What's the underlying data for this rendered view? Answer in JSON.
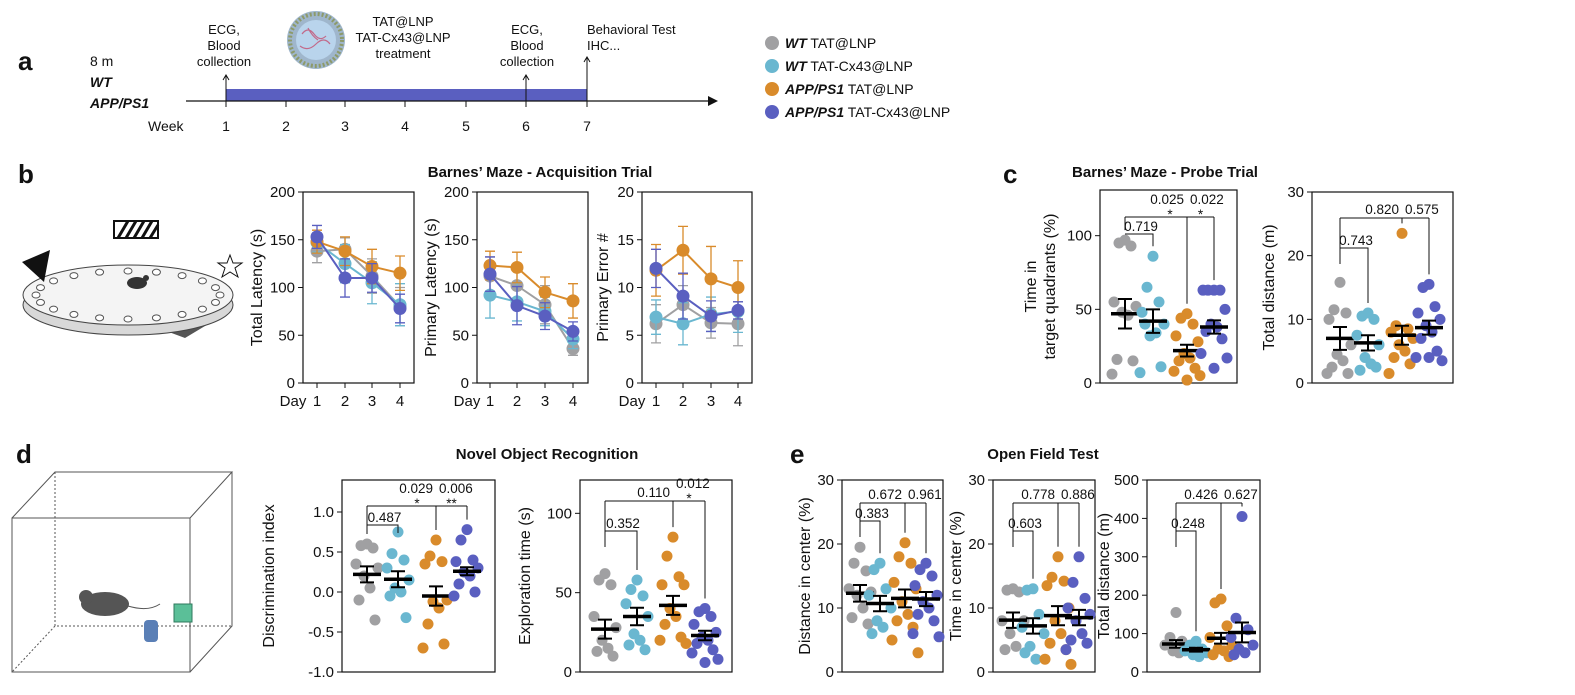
{
  "colors": {
    "wt_tat": "#a0a0a2",
    "wt_cx43": "#6ab7d0",
    "app_tat": "#d98b2b",
    "app_cx43": "#5a5fc0"
  },
  "panels": {
    "a": {
      "label": "a",
      "age": "8 m",
      "strain1": "WT",
      "strain2": "APP/PS1",
      "week_label": "Week",
      "weeks": [
        "1",
        "2",
        "3",
        "4",
        "5",
        "6",
        "7"
      ],
      "event1": [
        "ECG,",
        "Blood",
        "collection"
      ],
      "treatment": [
        "TAT@LNP",
        "TAT-Cx43@LNP",
        "treatment"
      ],
      "event2": [
        "ECG,",
        "Blood",
        "collection"
      ],
      "event3": [
        "Behavioral Test",
        "IHC..."
      ]
    },
    "b": {
      "label": "b",
      "title": "Barnes’ Maze - Acquisition Trial"
    },
    "c": {
      "label": "c",
      "title": "Barnes’ Maze - Probe Trial"
    },
    "d": {
      "label": "d",
      "title": "Novel Object Recognition"
    },
    "e": {
      "label": "e",
      "title": "Open Field Test"
    }
  },
  "legend": [
    {
      "genotype": "WT",
      "treatment": "TAT@LNP",
      "color": "#a0a0a2"
    },
    {
      "genotype": "WT",
      "treatment": "TAT-Cx43@LNP",
      "color": "#6ab7d0"
    },
    {
      "genotype": "APP/PS1",
      "treatment": "TAT@LNP",
      "color": "#d98b2b"
    },
    {
      "genotype": "APP/PS1",
      "treatment": "TAT-Cx43@LNP",
      "color": "#5a5fc0"
    }
  ],
  "chart_data": [
    {
      "id": "b1",
      "type": "line",
      "ylabel": "Total Latency (s)",
      "xlabel": "Day",
      "categories": [
        "1",
        "2",
        "3",
        "4"
      ],
      "ylim": [
        0,
        200
      ],
      "yticks": [
        0,
        50,
        100,
        150,
        200
      ],
      "series": [
        {
          "name": "WT TAT@LNP",
          "color": "#a0a0a2",
          "mean": [
            138,
            140,
            112,
            80
          ],
          "sem": [
            12,
            12,
            18,
            20
          ]
        },
        {
          "name": "WT TAT-Cx43@LNP",
          "color": "#6ab7d0",
          "mean": [
            147,
            125,
            105,
            82
          ],
          "sem": [
            10,
            20,
            22,
            22
          ]
        },
        {
          "name": "APP/PS1 TAT@LNP",
          "color": "#d98b2b",
          "mean": [
            148,
            138,
            122,
            115
          ],
          "sem": [
            12,
            15,
            18,
            18
          ]
        },
        {
          "name": "APP/PS1 TAT-Cx43@LNP",
          "color": "#5a5fc0",
          "mean": [
            153,
            110,
            110,
            78
          ],
          "sem": [
            12,
            20,
            15,
            15
          ]
        }
      ]
    },
    {
      "id": "b2",
      "type": "line",
      "ylabel": "Primary Latency (s)",
      "xlabel": "Day",
      "categories": [
        "1",
        "2",
        "3",
        "4"
      ],
      "ylim": [
        0,
        200
      ],
      "yticks": [
        0,
        50,
        100,
        150,
        200
      ],
      "series": [
        {
          "name": "WT TAT@LNP",
          "color": "#a0a0a2",
          "mean": [
            112,
            102,
            82,
            36
          ],
          "sem": [
            20,
            20,
            20,
            7
          ]
        },
        {
          "name": "WT TAT-Cx43@LNP",
          "color": "#6ab7d0",
          "mean": [
            92,
            85,
            75,
            46
          ],
          "sem": [
            24,
            20,
            15,
            10
          ]
        },
        {
          "name": "APP/PS1 TAT@LNP",
          "color": "#d98b2b",
          "mean": [
            123,
            121,
            95,
            86
          ],
          "sem": [
            15,
            16,
            16,
            18
          ]
        },
        {
          "name": "APP/PS1 TAT-Cx43@LNP",
          "color": "#5a5fc0",
          "mean": [
            114,
            81,
            70,
            54
          ],
          "sem": [
            18,
            20,
            14,
            10
          ]
        }
      ]
    },
    {
      "id": "b3",
      "type": "line",
      "ylabel": "Primary Error #",
      "xlabel": "Day",
      "categories": [
        "1",
        "2",
        "3",
        "4"
      ],
      "ylim": [
        0,
        20
      ],
      "yticks": [
        0,
        5,
        10,
        15,
        20
      ],
      "series": [
        {
          "name": "WT TAT@LNP",
          "color": "#a0a0a2",
          "mean": [
            6.2,
            8.2,
            6.3,
            6.2
          ],
          "sem": [
            2.0,
            2.0,
            1.6,
            2.3
          ]
        },
        {
          "name": "WT TAT-Cx43@LNP",
          "color": "#6ab7d0",
          "mean": [
            6.9,
            6.2,
            7.2,
            7.5
          ],
          "sem": [
            1.8,
            2.2,
            1.8,
            2.2
          ]
        },
        {
          "name": "APP/PS1 TAT@LNP",
          "color": "#d98b2b",
          "mean": [
            11.8,
            13.9,
            10.9,
            10.0
          ],
          "sem": [
            2.7,
            2.5,
            3.4,
            2.8
          ]
        },
        {
          "name": "APP/PS1 TAT-Cx43@LNP",
          "color": "#5a5fc0",
          "mean": [
            12.0,
            9.1,
            7.0,
            7.6
          ],
          "sem": [
            2.0,
            2.4,
            1.6,
            0.9
          ]
        }
      ]
    },
    {
      "id": "c1",
      "type": "scatter",
      "ylabel": [
        "Time in",
        "target quadrants (%)"
      ],
      "ylim": [
        0,
        131
      ],
      "yticks": [
        0,
        50,
        100
      ],
      "groups": [
        {
          "name": "WT TAT@LNP",
          "color": "#a0a0a2",
          "points": [
            97,
            95,
            93,
            55,
            52,
            48,
            46,
            16,
            15,
            6
          ],
          "mean": 47,
          "sem": 10
        },
        {
          "name": "WT TAT-Cx43@LNP",
          "color": "#6ab7d0",
          "points": [
            86,
            65,
            55,
            48,
            40,
            32,
            34,
            40,
            11,
            7
          ],
          "mean": 42,
          "sem": 8
        },
        {
          "name": "APP/PS1 TAT@LNP",
          "color": "#d98b2b",
          "points": [
            47,
            44,
            40,
            32,
            28,
            20,
            17,
            15,
            10,
            8,
            5,
            2
          ],
          "mean": 22,
          "sem": 4
        },
        {
          "name": "APP/PS1 TAT-Cx43@LNP",
          "color": "#5a5fc0",
          "points": [
            63,
            63,
            63,
            63,
            50,
            40,
            38,
            35,
            30,
            20,
            17,
            10
          ],
          "mean": 38,
          "sem": 4.5
        }
      ],
      "comparisons": [
        {
          "groups": [
            1,
            3
          ],
          "p": "0.025",
          "stars": "*"
        },
        {
          "groups": [
            3,
            4
          ],
          "p": "0.022",
          "stars": "*"
        },
        {
          "groups": [
            1,
            2
          ],
          "p": "0.719",
          "stars": ""
        }
      ]
    },
    {
      "id": "c2",
      "type": "scatter",
      "ylabel": [
        "Total distance (m)"
      ],
      "ylim": [
        0,
        30
      ],
      "yticks": [
        0,
        10,
        20,
        30
      ],
      "groups": [
        {
          "name": "WT TAT@LNP",
          "color": "#a0a0a2",
          "points": [
            15.8,
            11.5,
            11,
            10,
            6,
            4.5,
            3.5,
            2.5,
            1.5,
            1.5
          ],
          "mean": 7,
          "sem": 1.8
        },
        {
          "name": "WT TAT-Cx43@LNP",
          "color": "#6ab7d0",
          "points": [
            11,
            10.5,
            10,
            7.5,
            6,
            4,
            3,
            2,
            2.5
          ],
          "mean": 6.3,
          "sem": 1.2
        },
        {
          "name": "APP/PS1 TAT@LNP",
          "color": "#d98b2b",
          "points": [
            23.5,
            9,
            8.5,
            8,
            7,
            6,
            5,
            4,
            3,
            1.5
          ],
          "mean": 7.5,
          "sem": 1.5
        },
        {
          "name": "APP/PS1 TAT-Cx43@LNP",
          "color": "#5a5fc0",
          "points": [
            15.5,
            15,
            12,
            11,
            10,
            9,
            8,
            7,
            5,
            4,
            3.5,
            4
          ],
          "mean": 8.7,
          "sem": 1.1
        }
      ],
      "comparisons": [
        {
          "groups": [
            1,
            3
          ],
          "p": "0.820",
          "stars": ""
        },
        {
          "groups": [
            3,
            4
          ],
          "p": "0.575",
          "stars": ""
        },
        {
          "groups": [
            1,
            2
          ],
          "p": "0.743",
          "stars": ""
        }
      ]
    },
    {
      "id": "d1",
      "type": "scatter",
      "ylabel": [
        "Discrimination index"
      ],
      "ylim": [
        -1.0,
        1.4
      ],
      "yticks": [
        -1.0,
        -0.5,
        0.0,
        0.5,
        1.0
      ],
      "ytick_labels": [
        "-1.0",
        "-0.5",
        "0.0",
        "0.5",
        "1.0"
      ],
      "groups": [
        {
          "name": "WT TAT@LNP",
          "color": "#a0a0a2",
          "points": [
            0.6,
            0.58,
            0.55,
            0.35,
            0.3,
            0.2,
            0.05,
            -0.1,
            -0.35
          ],
          "mean": 0.22,
          "sem": 0.1
        },
        {
          "name": "WT TAT-Cx43@LNP",
          "color": "#6ab7d0",
          "points": [
            0.75,
            0.48,
            0.4,
            0.3,
            0.15,
            0.05,
            0.0,
            -0.05,
            -0.32
          ],
          "mean": 0.16,
          "sem": 0.1
        },
        {
          "name": "APP/PS1 TAT@LNP",
          "color": "#d98b2b",
          "points": [
            0.65,
            0.45,
            0.38,
            0.35,
            -0.1,
            -0.12,
            -0.2,
            -0.4,
            -0.65,
            -0.7
          ],
          "mean": -0.05,
          "sem": 0.12
        },
        {
          "name": "APP/PS1 TAT-Cx43@LNP",
          "color": "#5a5fc0",
          "points": [
            0.78,
            0.65,
            0.4,
            0.38,
            0.3,
            0.25,
            0.2,
            0.1,
            0.0,
            -0.05
          ],
          "mean": 0.26,
          "sem": 0.05
        }
      ],
      "comparisons": [
        {
          "groups": [
            1,
            3
          ],
          "p": "0.029",
          "stars": "*"
        },
        {
          "groups": [
            3,
            4
          ],
          "p": "0.006",
          "stars": "**"
        },
        {
          "groups": [
            1,
            2
          ],
          "p": "0.487",
          "stars": ""
        }
      ]
    },
    {
      "id": "d2",
      "type": "scatter",
      "ylabel": [
        "Exploration time (s)"
      ],
      "ylim": [
        0,
        121
      ],
      "yticks": [
        0,
        50,
        100
      ],
      "groups": [
        {
          "name": "WT TAT@LNP",
          "color": "#a0a0a2",
          "points": [
            62,
            58,
            55,
            35,
            28,
            20,
            15,
            13,
            10
          ],
          "mean": 27,
          "sem": 6
        },
        {
          "name": "WT TAT-Cx43@LNP",
          "color": "#6ab7d0",
          "points": [
            58,
            52,
            48,
            43,
            35,
            24,
            20,
            17,
            14
          ],
          "mean": 35,
          "sem": 5.5
        },
        {
          "name": "APP/PS1 TAT@LNP",
          "color": "#d98b2b",
          "points": [
            85,
            73,
            60,
            55,
            55,
            40,
            35,
            30,
            22,
            20,
            18
          ],
          "mean": 42,
          "sem": 6
        },
        {
          "name": "APP/PS1 TAT-Cx43@LNP",
          "color": "#5a5fc0",
          "points": [
            40,
            38,
            35,
            30,
            25,
            22,
            20,
            18,
            14,
            12,
            8,
            6
          ],
          "mean": 23,
          "sem": 3
        }
      ],
      "comparisons": [
        {
          "groups": [
            1,
            3
          ],
          "p": "0.110",
          "stars": ""
        },
        {
          "groups": [
            3,
            4
          ],
          "p": "0.012",
          "stars": "*"
        },
        {
          "groups": [
            1,
            2
          ],
          "p": "0.352",
          "stars": ""
        }
      ]
    },
    {
      "id": "e1",
      "type": "scatter",
      "ylabel": [
        "Distance in center (%)"
      ],
      "ylim": [
        0,
        30
      ],
      "yticks": [
        0,
        10,
        20,
        30
      ],
      "groups": [
        {
          "name": "WT TAT@LNP",
          "color": "#a0a0a2",
          "points": [
            19.5,
            17,
            15.8,
            13,
            12.5,
            12,
            10,
            8.5,
            7.5
          ],
          "mean": 12.3,
          "sem": 1.3
        },
        {
          "name": "WT TAT-Cx43@LNP",
          "color": "#6ab7d0",
          "points": [
            17,
            16,
            13,
            12,
            10,
            8,
            7,
            6
          ],
          "mean": 10.7,
          "sem": 1.2
        },
        {
          "name": "APP/PS1 TAT@LNP",
          "color": "#d98b2b",
          "points": [
            20.2,
            18,
            17,
            14,
            13,
            11,
            9,
            8,
            7,
            5,
            3
          ],
          "mean": 11.5,
          "sem": 1.4
        },
        {
          "name": "APP/PS1 TAT-Cx43@LNP",
          "color": "#5a5fc0",
          "points": [
            17,
            16,
            15,
            13.5,
            12,
            11,
            10,
            9,
            8,
            6,
            5.5
          ],
          "mean": 11.4,
          "sem": 1.1
        }
      ],
      "comparisons": [
        {
          "groups": [
            1,
            3
          ],
          "p": "0.672",
          "stars": ""
        },
        {
          "groups": [
            3,
            4
          ],
          "p": "0.961",
          "stars": ""
        },
        {
          "groups": [
            1,
            2
          ],
          "p": "0.383",
          "stars": ""
        }
      ]
    },
    {
      "id": "e2",
      "type": "scatter",
      "ylabel": [
        "Time in center (%)"
      ],
      "ylim": [
        0,
        30
      ],
      "yticks": [
        0,
        10,
        20,
        30
      ],
      "groups": [
        {
          "name": "WT TAT@LNP",
          "color": "#a0a0a2",
          "points": [
            13,
            12.8,
            12.5,
            8,
            8,
            6,
            4,
            3.5
          ],
          "mean": 8.1,
          "sem": 1.2
        },
        {
          "name": "WT TAT-Cx43@LNP",
          "color": "#6ab7d0",
          "points": [
            13,
            12.8,
            9,
            7,
            6,
            4,
            2,
            3
          ],
          "mean": 7.2,
          "sem": 1.2
        },
        {
          "name": "APP/PS1 TAT@LNP",
          "color": "#d98b2b",
          "points": [
            18,
            14.8,
            14.2,
            13.5,
            10,
            8,
            6,
            4.5,
            3.5,
            2,
            1.2
          ],
          "mean": 8.8,
          "sem": 1.5
        },
        {
          "name": "APP/PS1 TAT-Cx43@LNP",
          "color": "#5a5fc0",
          "points": [
            18,
            14,
            11.5,
            10,
            9,
            8,
            6,
            5,
            4.5,
            3.5
          ],
          "mean": 8.5,
          "sem": 1.2
        }
      ],
      "comparisons": [
        {
          "groups": [
            1,
            3
          ],
          "p": "0.778",
          "stars": ""
        },
        {
          "groups": [
            3,
            4
          ],
          "p": "0.886",
          "stars": ""
        },
        {
          "groups": [
            1,
            2
          ],
          "p": "0.603",
          "stars": ""
        }
      ]
    },
    {
      "id": "e3",
      "type": "scatter",
      "ylabel": [
        "Total distance (m)"
      ],
      "ylim": [
        0,
        500
      ],
      "yticks": [
        0,
        100,
        200,
        300,
        400,
        500
      ],
      "groups": [
        {
          "name": "WT TAT@LNP",
          "color": "#a0a0a2",
          "points": [
            155,
            90,
            80,
            70,
            60,
            55,
            50
          ],
          "mean": 73,
          "sem": 10
        },
        {
          "name": "WT TAT-Cx43@LNP",
          "color": "#6ab7d0",
          "points": [
            80,
            70,
            60,
            55,
            50,
            45,
            40
          ],
          "mean": 58,
          "sem": 5
        },
        {
          "name": "APP/PS1 TAT@LNP",
          "color": "#d98b2b",
          "points": [
            190,
            180,
            120,
            90,
            70,
            60,
            55,
            45,
            40
          ],
          "mean": 88,
          "sem": 14
        },
        {
          "name": "APP/PS1 TAT-Cx43@LNP",
          "color": "#5a5fc0",
          "points": [
            405,
            140,
            110,
            90,
            70,
            60,
            50,
            45
          ],
          "mean": 103,
          "sem": 26
        }
      ],
      "comparisons": [
        {
          "groups": [
            1,
            3
          ],
          "p": "0.426",
          "stars": ""
        },
        {
          "groups": [
            3,
            4
          ],
          "p": "0.627",
          "stars": ""
        },
        {
          "groups": [
            1,
            2
          ],
          "p": "0.248",
          "stars": ""
        }
      ]
    }
  ]
}
